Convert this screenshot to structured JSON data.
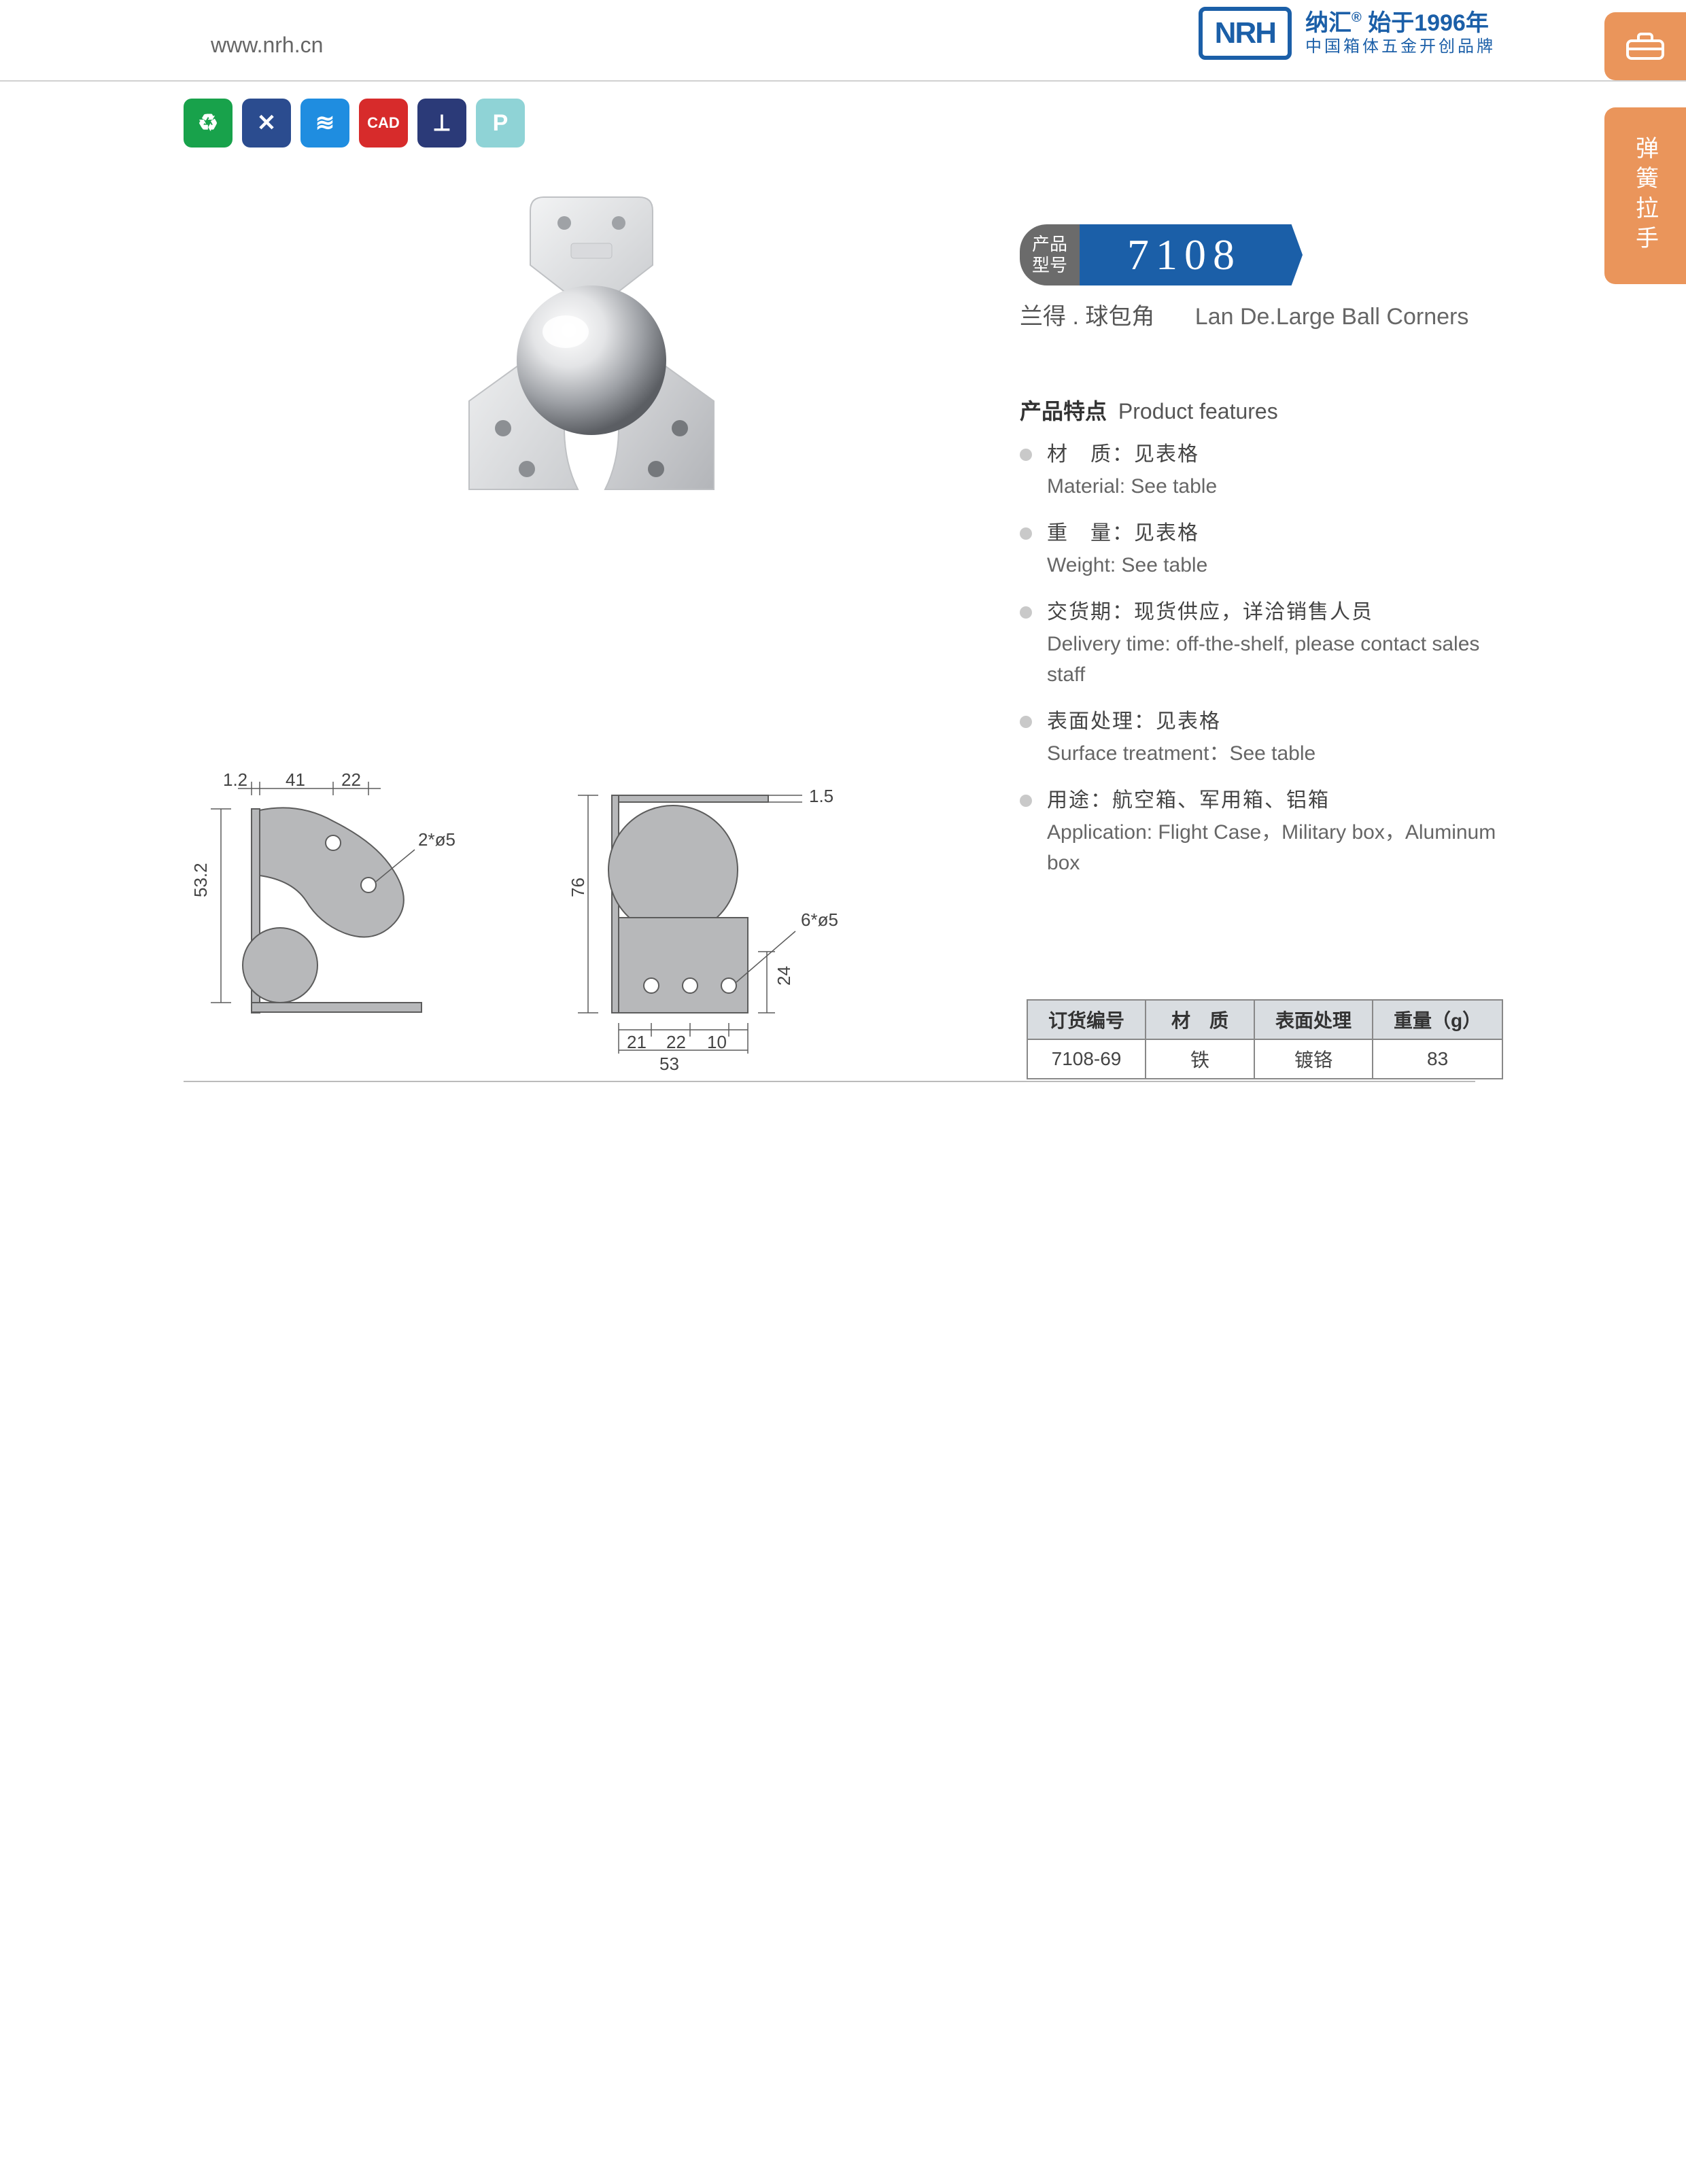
{
  "header": {
    "url": "www.nrh.cn",
    "logo_brand": "NRH",
    "logo_line1_a": "纳汇",
    "logo_line1_b": "始于1996年",
    "logo_line2": "中国箱体五金开创品牌"
  },
  "side_tabs": {
    "text": "弹簧拉手"
  },
  "icon_row": [
    {
      "name": "eco-icon",
      "bg": "#18a24b",
      "glyph": "♻"
    },
    {
      "name": "tools-icon",
      "bg": "#2b4c8f",
      "glyph": "✕"
    },
    {
      "name": "spring-icon",
      "bg": "#1f8de0",
      "glyph": "≋"
    },
    {
      "name": "cad-icon",
      "bg": "#d72b2b",
      "glyph": "CAD"
    },
    {
      "name": "screw-icon",
      "bg": "#2b3a78",
      "glyph": "⟂"
    },
    {
      "name": "p-icon",
      "bg": "#8fd3d6",
      "glyph": "P"
    }
  ],
  "model": {
    "label_line1": "产品",
    "label_line2": "型号",
    "number": "7108",
    "subtitle_cn": "兰得 . 球包角",
    "subtitle_en": "Lan De.Large Ball Corners"
  },
  "features": {
    "title_cn": "产品特点",
    "title_en": "Product features",
    "items": [
      {
        "cn": "材　质：见表格",
        "en": "Material: See table"
      },
      {
        "cn": "重　量：见表格",
        "en": "Weight: See table"
      },
      {
        "cn": "交货期：现货供应，详洽销售人员",
        "en": "Delivery time: off-the-shelf, please contact sales staff"
      },
      {
        "cn": "表面处理：见表格",
        "en": "Surface treatment：See table"
      },
      {
        "cn": "用途：航空箱、军用箱、铝箱",
        "en": "Application: Flight Case，Military box，Aluminum box"
      }
    ]
  },
  "drawing_dims": {
    "left": {
      "t1": "1.2",
      "t2": "41",
      "t3": "22",
      "holes": "2*ø5",
      "h1": "53.2"
    },
    "right": {
      "t_thick": "1.5",
      "holes": "6*ø5",
      "h_total": "76",
      "h_low": "24",
      "b1": "21",
      "b2": "22",
      "b3": "10",
      "b_total": "53"
    }
  },
  "spec_table": {
    "headers": [
      "订货编号",
      "材　质",
      "表面处理",
      "重量（g）"
    ],
    "rows": [
      [
        "7108-69",
        "铁",
        "镀铬",
        "83"
      ]
    ]
  },
  "colors": {
    "brand_blue": "#1b5fa8",
    "side_orange": "#ea955b",
    "metal_light": "#e6e7e9",
    "metal_mid": "#bfc2c6",
    "metal_dark": "#8e9196",
    "drawing_fill": "#b7b8ba",
    "drawing_stroke": "#5c5c5c"
  }
}
